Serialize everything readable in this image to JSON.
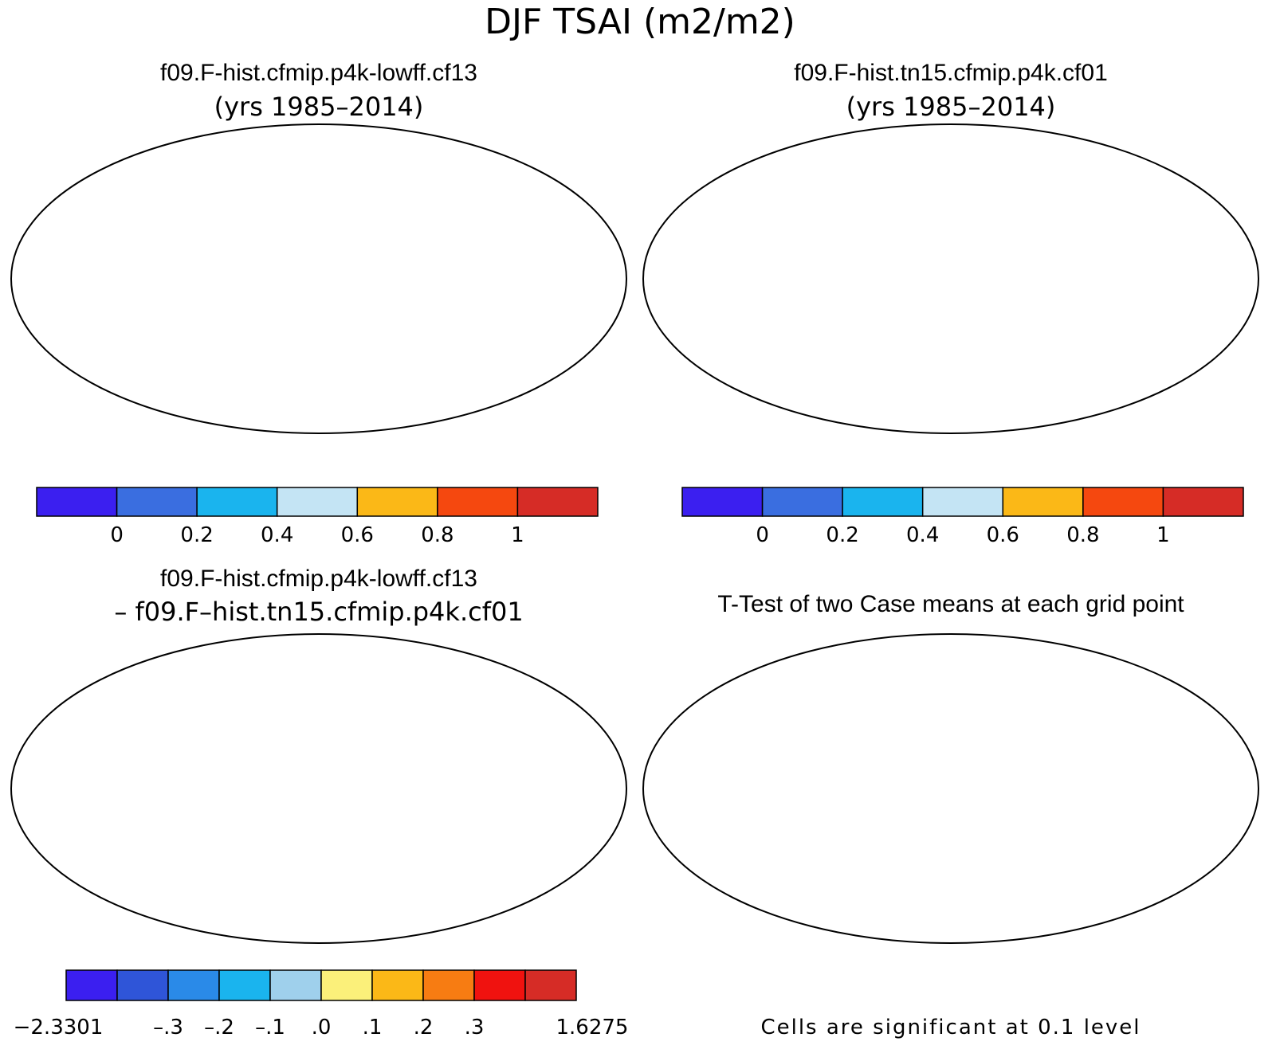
{
  "figure": {
    "title": "DJF TSAI (m2/m2)"
  },
  "panels": [
    {
      "id": "case1",
      "title": "f09.F-hist.cfmip.p4k-lowff.cf13",
      "subtitle": "(yrs 1985–2014)"
    },
    {
      "id": "case2",
      "title": "f09.F-hist.tn15.cfmip.p4k.cf01",
      "subtitle": "(yrs 1985–2014)"
    },
    {
      "id": "diff",
      "title": "f09.F-hist.cfmip.p4k-lowff.cf13",
      "subtitle": "– f09.F–hist.tn15.cfmip.p4k.cf01"
    },
    {
      "id": "ttest",
      "title": "T-Test of two Case means at each grid point",
      "note": "Cells are significant at 0.1 level"
    }
  ],
  "colorbars": {
    "abs": {
      "colors": [
        "#3b1ff0",
        "#3a6ee0",
        "#1ab4ee",
        "#c4e4f4",
        "#fbb817",
        "#f5480f",
        "#d62c26"
      ],
      "ticks": [
        "0",
        "0.2",
        "0.4",
        "0.6",
        "0.8",
        "1"
      ]
    },
    "diff": {
      "colors": [
        "#3b1ff0",
        "#2f55d8",
        "#2a8ae8",
        "#1ab4ee",
        "#9fd0ec",
        "#fbf07a",
        "#fbb817",
        "#f77c12",
        "#f0120f",
        "#d62c26"
      ],
      "ticks": [
        "−2.3301",
        "–.3",
        "–.2",
        "–.1",
        ".0",
        ".1",
        ".2",
        ".3",
        "1.6275"
      ]
    }
  },
  "colors": {
    "significant": "#f0110f",
    "ocean": "#ffffff",
    "coastline": "#000000"
  }
}
